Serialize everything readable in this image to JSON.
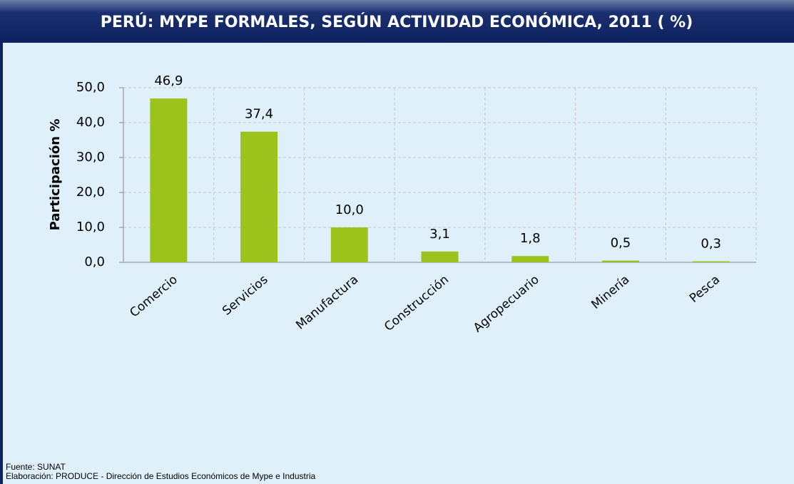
{
  "chart_data": {
    "type": "bar",
    "title": "PERÚ: MYPE FORMALES, SEGÚN ACTIVIDAD ECONÓMICA, 2011 ( %)",
    "y_label": "Participación %",
    "categories": [
      "Comercio",
      "Servicios",
      "Manufactura",
      "Construcción",
      "Agropecuario",
      "Minería",
      "Pesca"
    ],
    "values": [
      46.9,
      37.4,
      10.0,
      3.1,
      1.8,
      0.5,
      0.3
    ],
    "value_labels": [
      "46,9",
      "37,4",
      "10,0",
      "3,1",
      "1,8",
      "0,5",
      "0,3"
    ],
    "color": "#9bc31b",
    "ylim": [
      0,
      50
    ],
    "yticks": [
      {
        "value": 0,
        "label": "0,0"
      },
      {
        "value": 10,
        "label": "10,0"
      },
      {
        "value": 20,
        "label": "20,0"
      },
      {
        "value": 30,
        "label": "30,0"
      },
      {
        "value": 40,
        "label": "40,0"
      },
      {
        "value": 50,
        "label": "50,0"
      }
    ],
    "grid": true,
    "source": "Fuente: SUNAT",
    "credit": "Elaboración: PRODUCE - Dirección de Estudios Económicos de Mype e Industria"
  }
}
